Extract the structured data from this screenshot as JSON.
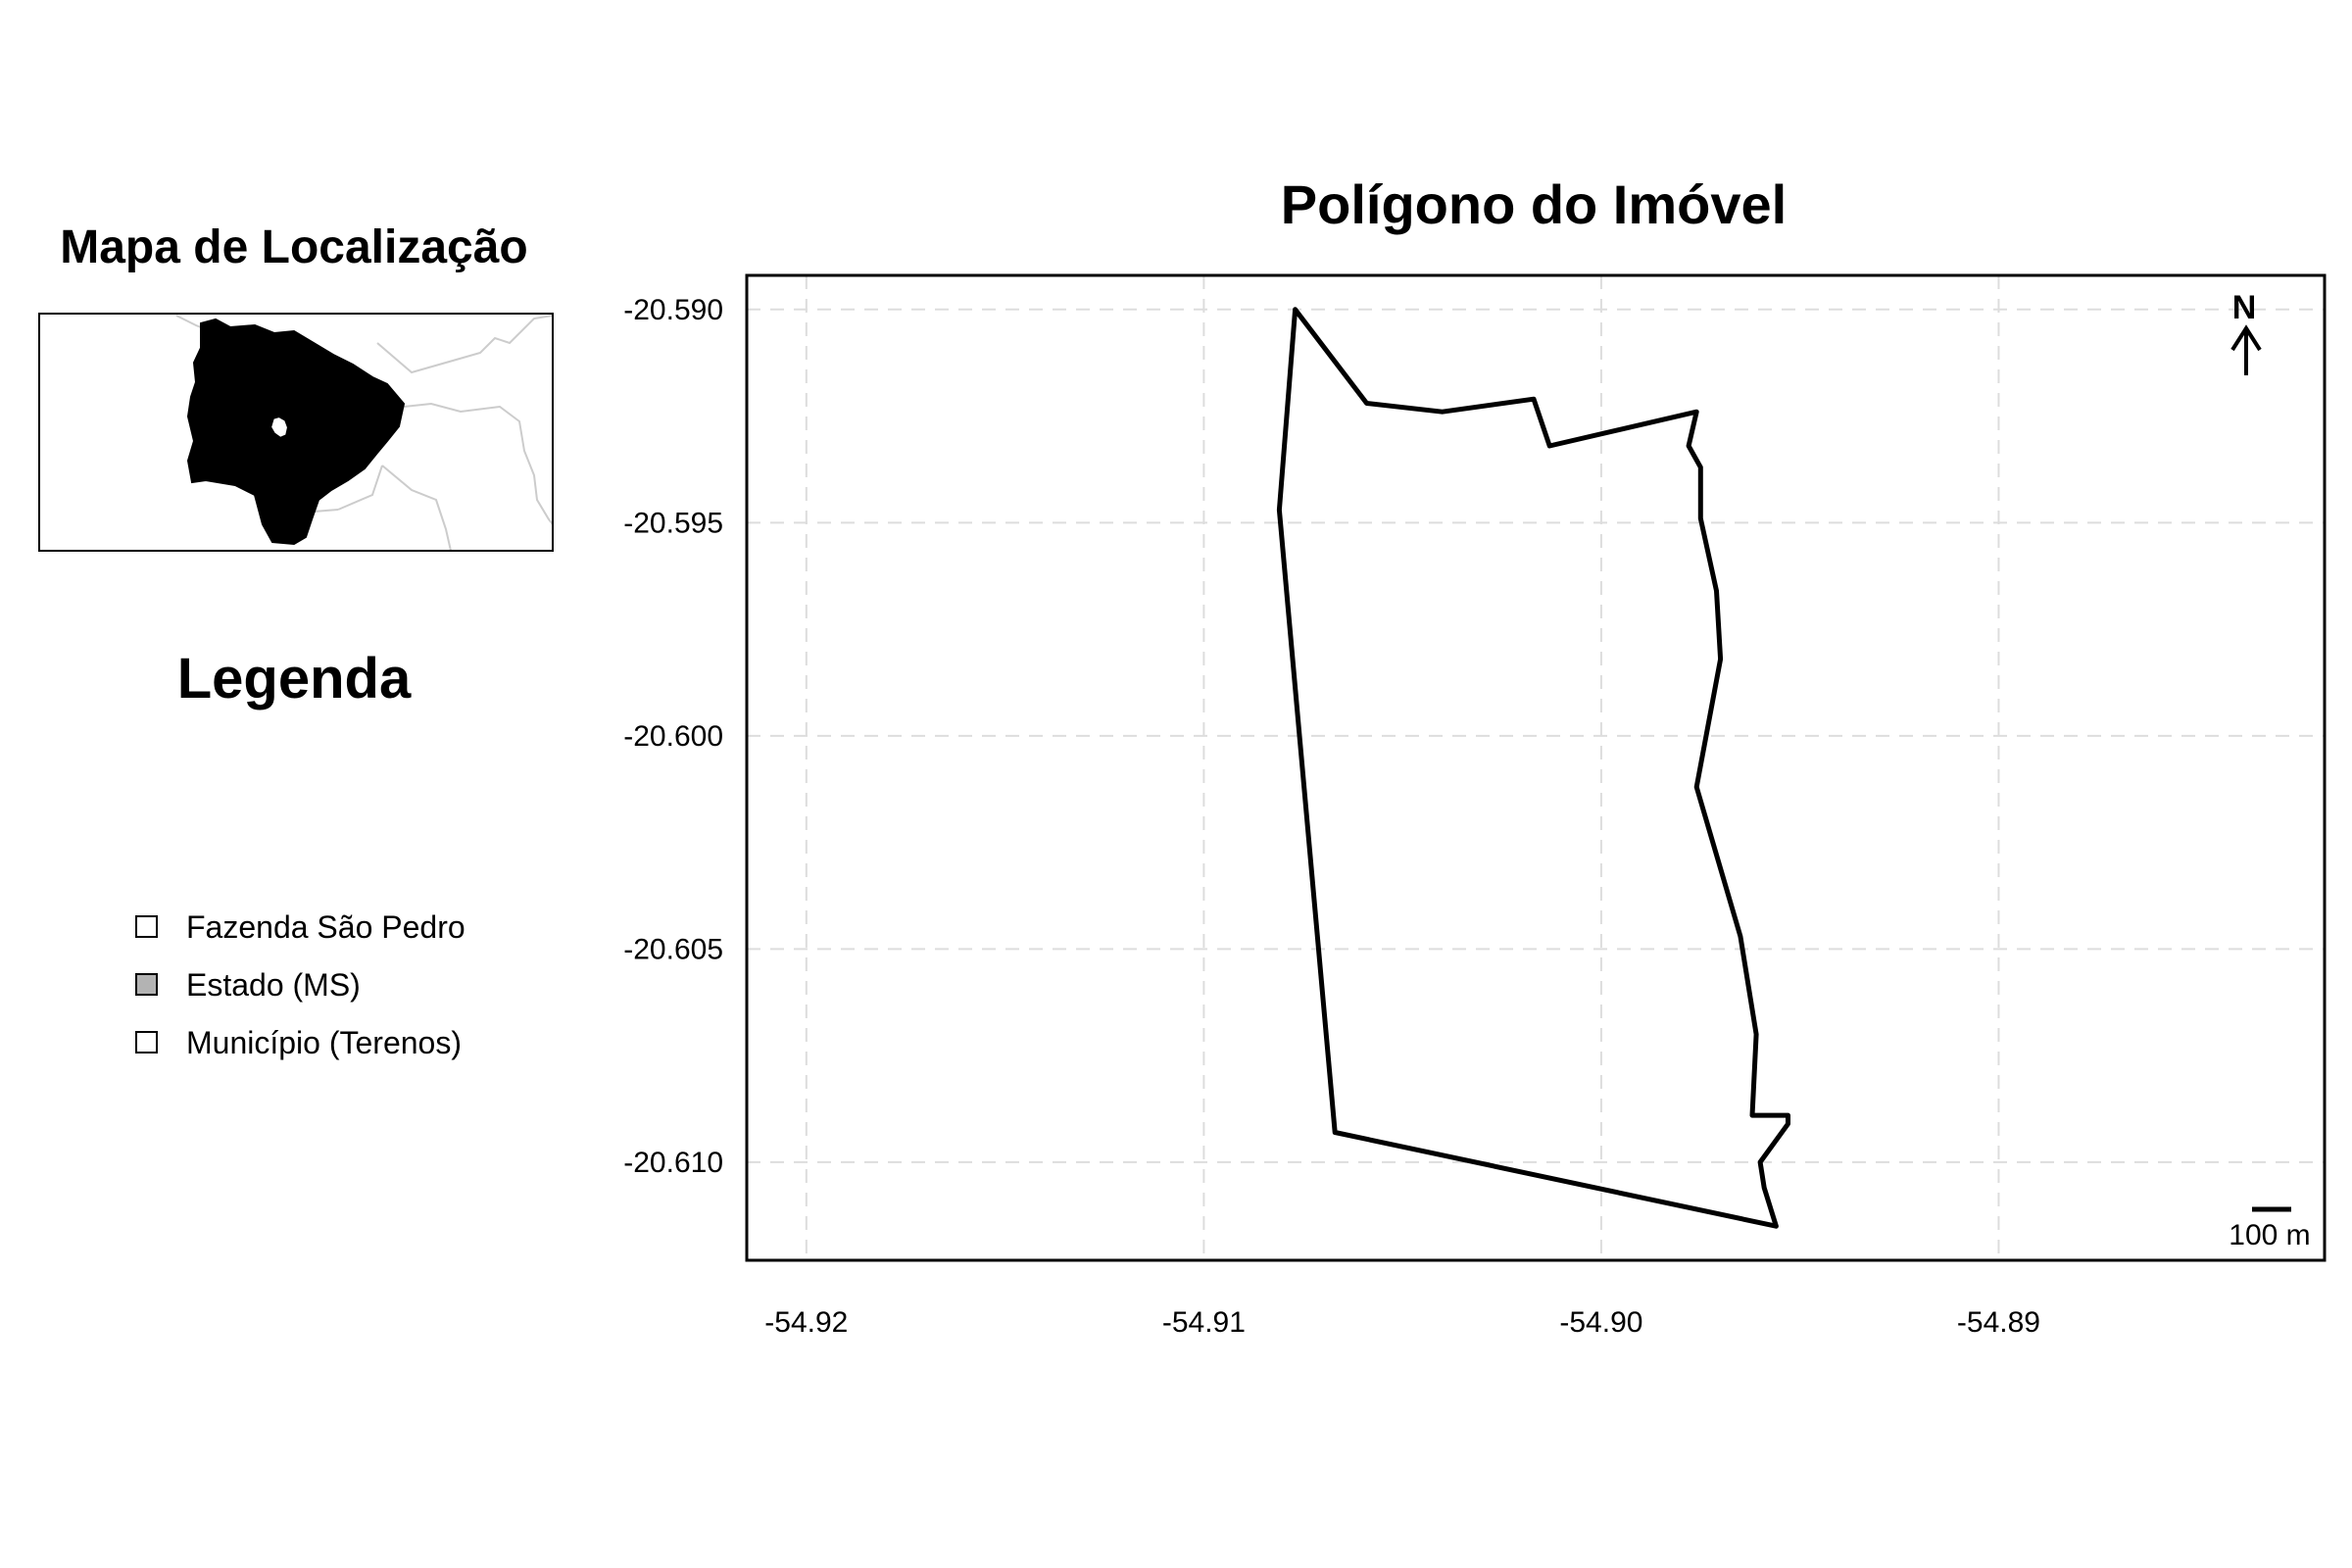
{
  "main_map": {
    "title": "Polígono do Imóvel",
    "xlim": [
      -54.9215,
      -54.8818
    ],
    "ylim": [
      -20.6123,
      -20.5892
    ],
    "x_ticks": [
      -54.92,
      -54.91,
      -54.9,
      -54.89
    ],
    "x_tick_labels": [
      "-54.92",
      "-54.91",
      "-54.90",
      "-54.89"
    ],
    "y_ticks": [
      -20.59,
      -20.595,
      -20.6,
      -20.605,
      -20.61
    ],
    "y_tick_labels": [
      "-20.590",
      "-20.595",
      "-20.600",
      "-20.605",
      "-20.610"
    ],
    "grid": true,
    "north_arrow_label": "N",
    "scale_bar_label": "100 m",
    "polygon_color": "#000000",
    "polygon": [
      [
        -54.9077,
        -20.59
      ],
      [
        -54.9059,
        -20.5922
      ],
      [
        -54.904,
        -20.5924
      ],
      [
        -54.9017,
        -20.5921
      ],
      [
        -54.9013,
        -20.5932
      ],
      [
        -54.8976,
        -20.5924
      ],
      [
        -54.8978,
        -20.5932
      ],
      [
        -54.8975,
        -20.5937
      ],
      [
        -54.8975,
        -20.5949
      ],
      [
        -54.8971,
        -20.5966
      ],
      [
        -54.897,
        -20.5982
      ],
      [
        -54.8976,
        -20.6012
      ],
      [
        -54.8965,
        -20.6047
      ],
      [
        -54.8961,
        -20.607
      ],
      [
        -54.8962,
        -20.6089
      ],
      [
        -54.8953,
        -20.6089
      ],
      [
        -54.8953,
        -20.6091
      ],
      [
        -54.896,
        -20.61
      ],
      [
        -54.8959,
        -20.6106
      ],
      [
        -54.8956,
        -20.6115
      ],
      [
        -54.9067,
        -20.6093
      ],
      [
        -54.9081,
        -20.5947
      ]
    ]
  },
  "inset_map": {
    "title": "Mapa de Localização",
    "state_fill": "#b3b3b3",
    "border_color": "#cccccc"
  },
  "legend": {
    "title": "Legenda",
    "items": [
      {
        "label": "Fazenda São Pedro",
        "fill": "#ffffff"
      },
      {
        "label": "Estado (MS)",
        "fill": "#b3b3b3"
      },
      {
        "label": "Município (Terenos)",
        "fill": "#ffffff"
      }
    ]
  }
}
